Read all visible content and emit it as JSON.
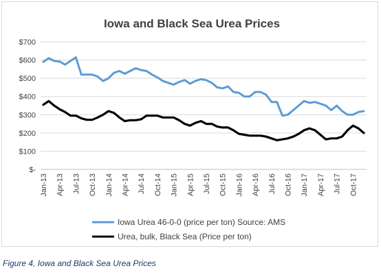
{
  "chart_data": {
    "type": "line",
    "title": "Iowa and Black Sea Urea Prices",
    "xlabel": "",
    "ylabel": "",
    "ylim": [
      0,
      700
    ],
    "yticks": [
      0,
      100,
      200,
      300,
      400,
      500,
      600,
      700
    ],
    "ytick_labels": [
      "$-",
      "$100",
      "$200",
      "$300",
      "$400",
      "$500",
      "$600",
      "$700"
    ],
    "grid": "horizontal",
    "legend_placement": "bottom",
    "x_tick_labels": [
      "Jan-13",
      "Apr-13",
      "Jul-13",
      "Oct-13",
      "Jan-14",
      "Apr-14",
      "Jul-14",
      "Oct-14",
      "Jan-15",
      "Apr-15",
      "Jul-15",
      "Oct-15",
      "Jan-16",
      "Apr-16",
      "Jul-16",
      "Oct-16",
      "Jan-17",
      "Apr-17",
      "Jul-17",
      "Oct-17"
    ],
    "x": [
      "Jan-13",
      "Feb-13",
      "Mar-13",
      "Apr-13",
      "May-13",
      "Jun-13",
      "Jul-13",
      "Aug-13",
      "Sep-13",
      "Oct-13",
      "Nov-13",
      "Dec-13",
      "Jan-14",
      "Feb-14",
      "Mar-14",
      "Apr-14",
      "May-14",
      "Jun-14",
      "Jul-14",
      "Aug-14",
      "Sep-14",
      "Oct-14",
      "Nov-14",
      "Dec-14",
      "Jan-15",
      "Feb-15",
      "Mar-15",
      "Apr-15",
      "May-15",
      "Jun-15",
      "Jul-15",
      "Aug-15",
      "Sep-15",
      "Oct-15",
      "Nov-15",
      "Dec-15",
      "Jan-16",
      "Feb-16",
      "Mar-16",
      "Apr-16",
      "May-16",
      "Jun-16",
      "Jul-16",
      "Aug-16",
      "Sep-16",
      "Oct-16",
      "Nov-16",
      "Dec-16",
      "Jan-17",
      "Feb-17",
      "Mar-17",
      "Apr-17",
      "May-17",
      "Jun-17",
      "Jul-17",
      "Aug-17",
      "Sep-17",
      "Oct-17",
      "Nov-17",
      "Dec-17"
    ],
    "series": [
      {
        "name": "Iowa Urea 46-0-0 (price per ton) Source: AMS",
        "color": "#5b9bd5",
        "values": [
          590,
          610,
          595,
          592,
          575,
          595,
          615,
          520,
          520,
          520,
          510,
          485,
          500,
          530,
          540,
          525,
          540,
          555,
          545,
          540,
          520,
          505,
          485,
          475,
          465,
          480,
          490,
          470,
          485,
          495,
          490,
          475,
          450,
          445,
          455,
          425,
          420,
          400,
          400,
          425,
          425,
          410,
          370,
          370,
          295,
          300,
          325,
          350,
          375,
          365,
          370,
          360,
          350,
          325,
          350,
          320,
          300,
          300,
          315,
          320
        ]
      },
      {
        "name": "Urea, bulk, Black Sea (Price per ton)",
        "color": "#000000",
        "values": [
          355,
          375,
          350,
          330,
          315,
          295,
          295,
          280,
          272,
          272,
          285,
          300,
          320,
          310,
          285,
          265,
          270,
          270,
          275,
          295,
          295,
          295,
          285,
          285,
          285,
          270,
          250,
          240,
          255,
          265,
          250,
          250,
          235,
          230,
          230,
          215,
          195,
          190,
          185,
          185,
          185,
          180,
          170,
          160,
          165,
          170,
          180,
          195,
          215,
          225,
          215,
          190,
          165,
          170,
          170,
          180,
          215,
          240,
          225,
          200
        ]
      }
    ]
  },
  "caption": "Figure 4, Iowa and Black Sea Urea Prices"
}
